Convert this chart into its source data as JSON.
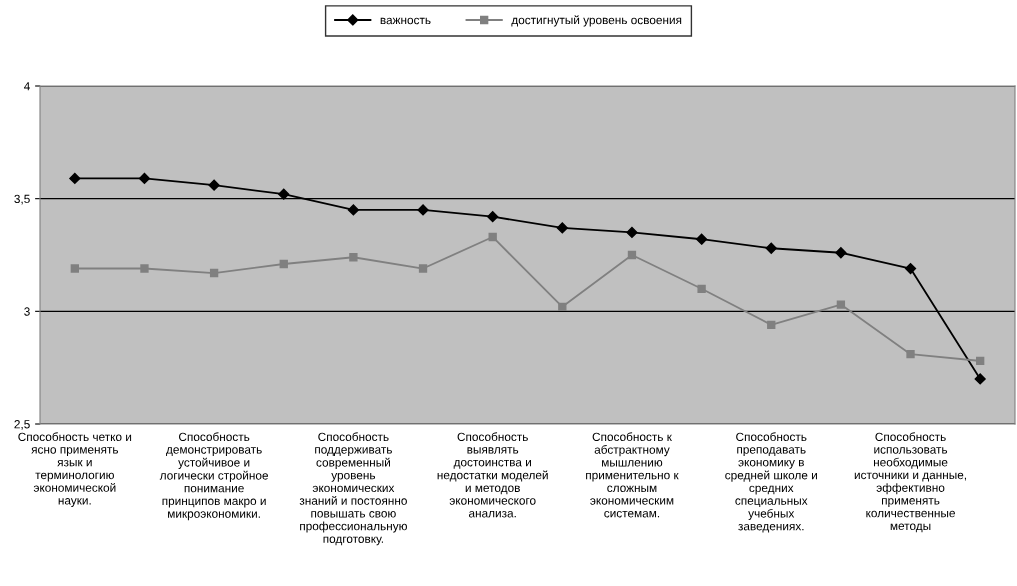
{
  "chart_data": {
    "type": "line",
    "categories": [
      "Способность четко и\nясно применять\nязык и\nтерминологию\nэкономической\nнауки.",
      null,
      "Способность\nдемонстрировать\nустойчивое и\nлогически стройное\nпонимание\nпринципов макро и\nмикроэкономики.",
      null,
      "Способность\nподдерживать\nсовременный\nуровень\nэкономических\nзнаний и постоянно\nповышать свою\nпрофессиональную\nподготовку.",
      null,
      "Способность\nвыявлять\nдостоинства и\nнедостатки моделей\nи методов\nэкономического\nанализа.",
      null,
      "Способность к\nабстрактному\nмышлению\nприменительно к\nсложным\nэкономическим\nсистемам.",
      null,
      "Способность\nпреподавать\nэкономику в\nсредней школе и\nсредних\nспециальных\nучебных\nзаведениях.",
      null,
      "Способность\nиспользовать\nнеобходимые\nисточники и данные,\nэффективно\nприменять\nколичественные\nметоды",
      null
    ],
    "series": [
      {
        "name": "важность",
        "color": "#000000",
        "marker": "diamond",
        "values": [
          3.59,
          3.59,
          3.56,
          3.52,
          3.45,
          3.45,
          3.42,
          3.37,
          3.35,
          3.32,
          3.28,
          3.26,
          3.19,
          2.7
        ]
      },
      {
        "name": "достигнутый уровень освоения",
        "color": "#808080",
        "marker": "square",
        "values": [
          3.19,
          3.19,
          3.17,
          3.21,
          3.24,
          3.19,
          3.33,
          3.02,
          3.25,
          3.1,
          2.94,
          3.03,
          2.81,
          2.78
        ]
      }
    ],
    "ylim": [
      2.5,
      4
    ],
    "yticks": [
      {
        "value": 2.5,
        "label": "2,5"
      },
      3,
      {
        "value": 3.5,
        "label": "3,5"
      },
      4
    ],
    "grid": "y",
    "legend": "top",
    "line_style": "solid"
  }
}
